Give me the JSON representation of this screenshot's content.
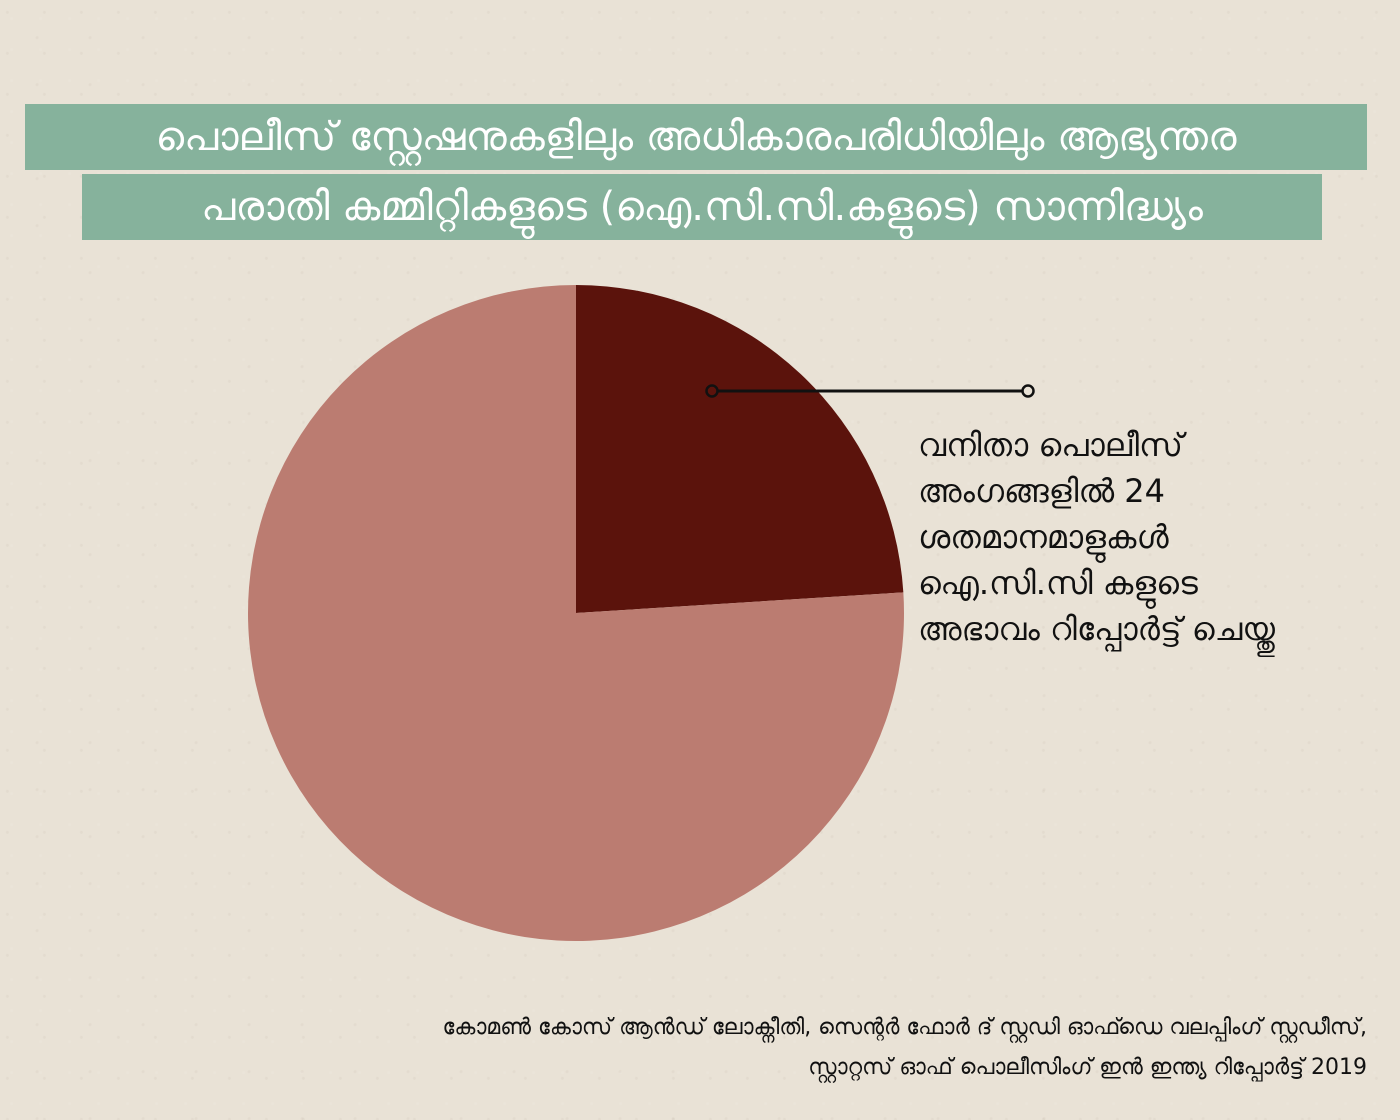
{
  "title": {
    "line1": "പൊലീസ് സ്റ്റേഷനുകളിലും അധികാരപരിധിയിലും ആഭ്യന്തര",
    "line2": "പരാതി കമ്മിറ്റികളുടെ (ഐ.സി.സി.കളുടെ) സാന്നിദ്ധ്യം"
  },
  "colors": {
    "title_band": "#86b29c",
    "highlight_slice": "#5b130c",
    "remainder_slice": "#bb7c71",
    "background": "#e9e2d6"
  },
  "chart_data": {
    "type": "pie",
    "slices": [
      {
        "label": "",
        "value": 24,
        "color": "#5b130c"
      },
      {
        "label": "",
        "value": 76,
        "color": "#bb7c71"
      }
    ],
    "annotation": {
      "lines": [
        "വനിതാ പൊലീസ്",
        "അംഗങ്ങളിൽ 24",
        "ശതമാനമാളുകൾ",
        "ഐ.സി.സി കളുടെ",
        "അഭാവം റിപ്പോർട്ട് ചെയ്തു"
      ],
      "points_to": 0
    }
  },
  "source": {
    "line1": "കോമൺ കോസ് ആൻഡ് ലോക്നീതി, സെന്റർ ഫോർ ദ് സ്റ്റഡി ഓഫ്ഡെ വലപ്പിംഗ് സ്റ്റഡീസ്,",
    "line2": "സ്റ്റാറ്റസ് ഓഫ് പൊലീസിംഗ് ഇൻ ഇന്ത്യ റിപ്പോർട്ട് 2019"
  }
}
